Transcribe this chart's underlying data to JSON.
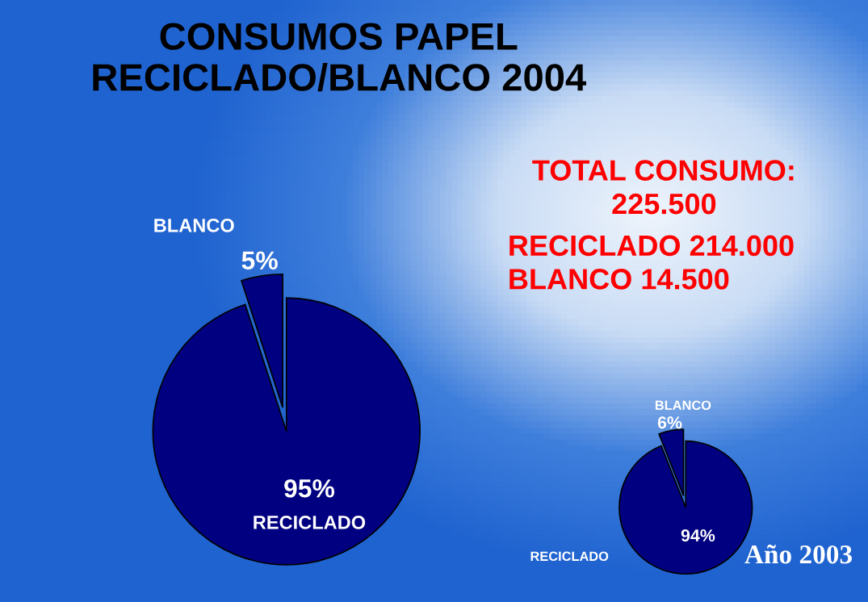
{
  "chart_data": [
    {
      "type": "pie",
      "title": "CONSUMOS PAPEL\nRECICLADO/BLANCO 2004",
      "categories": [
        "BLANCO",
        "RECICLADO"
      ],
      "values": [
        5,
        95
      ],
      "value_labels": [
        "5%",
        "95%"
      ],
      "colors": [
        "#000080",
        "#000080"
      ],
      "annotations": [
        "TOTAL CONSUMO:\n225.500",
        "RECICLADO 214.000\nBLANCO 14.500"
      ]
    },
    {
      "type": "pie",
      "title": "Año 2003",
      "categories": [
        "BLANCO",
        "RECICLADO"
      ],
      "values": [
        6,
        94
      ],
      "value_labels": [
        "6%",
        "94%"
      ],
      "colors": [
        "#000080",
        "#000080"
      ]
    }
  ]
}
